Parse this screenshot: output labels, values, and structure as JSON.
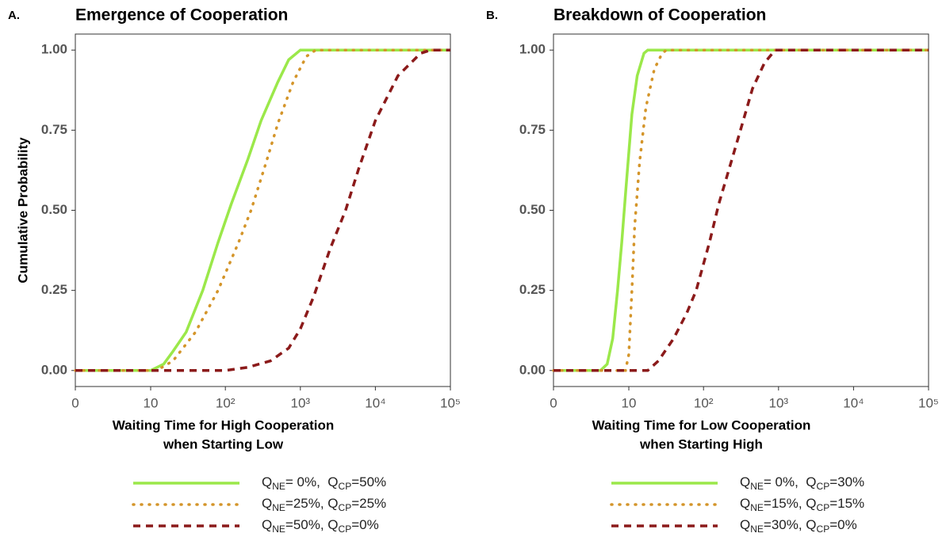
{
  "chart_data": [
    {
      "type": "line",
      "panel_label": "A.",
      "title": "Emergence of Cooperation",
      "xlabel": [
        "Waiting Time for High Cooperation",
        "when Starting Low"
      ],
      "ylabel": "Cumulative Probability",
      "xscale": "pseudo_log",
      "xlim": [
        0,
        100000
      ],
      "xticks": [
        0,
        10,
        {
          "value": 100,
          "label": "10²"
        },
        {
          "value": 1000,
          "label": "10³"
        },
        {
          "value": 10000,
          "label": "10⁴"
        },
        {
          "value": 100000,
          "label": "10⁵"
        }
      ],
      "ylim": [
        -0.05,
        1.05
      ],
      "yticks": [
        {
          "value": 0,
          "label": "0.00"
        },
        {
          "value": 0.25,
          "label": "0.25"
        },
        {
          "value": 0.5,
          "label": "0.50"
        },
        {
          "value": 0.75,
          "label": "0.75"
        },
        {
          "value": 1,
          "label": "1.00"
        }
      ],
      "series": [
        {
          "name": "QNE= 0%,  QCP=50%",
          "color": "#9be84a",
          "linestyle": "solid",
          "x": [
            0,
            10,
            15,
            20,
            30,
            50,
            80,
            120,
            200,
            300,
            500,
            700,
            1000,
            100000
          ],
          "values": [
            0,
            0,
            0.02,
            0.06,
            0.12,
            0.25,
            0.4,
            0.52,
            0.66,
            0.78,
            0.9,
            0.97,
            1,
            1
          ]
        },
        {
          "name": "QNE=25%, QCP=25%",
          "color": "#d4952a",
          "linestyle": "dotted",
          "x": [
            0,
            12,
            20,
            40,
            80,
            150,
            220,
            350,
            500,
            800,
            1200,
            1600,
            100000
          ],
          "values": [
            0,
            0,
            0.03,
            0.12,
            0.25,
            0.4,
            0.5,
            0.65,
            0.77,
            0.9,
            0.98,
            1,
            1
          ]
        },
        {
          "name": "QNE=50%, QCP=0%",
          "color": "#8b1a1a",
          "linestyle": "dashed",
          "x": [
            0,
            100,
            200,
            400,
            700,
            1000,
            1500,
            2500,
            4000,
            6000,
            10000,
            20000,
            40000,
            55000,
            100000
          ],
          "values": [
            0,
            0,
            0.01,
            0.03,
            0.07,
            0.13,
            0.23,
            0.38,
            0.5,
            0.63,
            0.78,
            0.92,
            0.99,
            1,
            1
          ]
        }
      ]
    },
    {
      "type": "line",
      "panel_label": "B.",
      "title": "Breakdown of Cooperation",
      "xlabel": [
        "Waiting Time for Low Cooperation",
        "when Starting High"
      ],
      "xscale": "pseudo_log",
      "xlim": [
        0,
        100000
      ],
      "xticks": [
        0,
        10,
        {
          "value": 100,
          "label": "10²"
        },
        {
          "value": 1000,
          "label": "10³"
        },
        {
          "value": 10000,
          "label": "10⁴"
        },
        {
          "value": 100000,
          "label": "10⁵"
        }
      ],
      "ylim": [
        -0.05,
        1.05
      ],
      "yticks": [
        {
          "value": 0,
          "label": "0.00"
        },
        {
          "value": 0.25,
          "label": "0.25"
        },
        {
          "value": 0.5,
          "label": "0.50"
        },
        {
          "value": 0.75,
          "label": "0.75"
        },
        {
          "value": 1,
          "label": "1.00"
        }
      ],
      "series": [
        {
          "name": "QNE= 0%,  QCP=30%",
          "color": "#9be84a",
          "linestyle": "solid",
          "x": [
            0,
            4,
            5,
            6,
            7,
            8,
            9,
            10,
            11,
            13,
            16,
            18,
            100000
          ],
          "values": [
            0,
            0,
            0.02,
            0.1,
            0.25,
            0.4,
            0.55,
            0.68,
            0.8,
            0.92,
            0.99,
            1,
            1
          ]
        },
        {
          "name": "QNE=15%, QCP=15%",
          "color": "#d4952a",
          "linestyle": "dotted",
          "x": [
            0,
            9,
            10,
            11,
            12,
            14,
            17,
            22,
            28,
            32,
            100000
          ],
          "values": [
            0,
            0,
            0.05,
            0.25,
            0.45,
            0.65,
            0.82,
            0.94,
            0.99,
            1,
            1
          ]
        },
        {
          "name": "QNE=30%, QCP=0%",
          "color": "#8b1a1a",
          "linestyle": "dashed",
          "x": [
            0,
            18,
            25,
            40,
            60,
            80,
            120,
            160,
            220,
            320,
            450,
            650,
            900,
            100000
          ],
          "values": [
            0,
            0,
            0.03,
            0.1,
            0.18,
            0.25,
            0.4,
            0.52,
            0.63,
            0.76,
            0.88,
            0.96,
            1,
            1
          ]
        }
      ]
    }
  ]
}
